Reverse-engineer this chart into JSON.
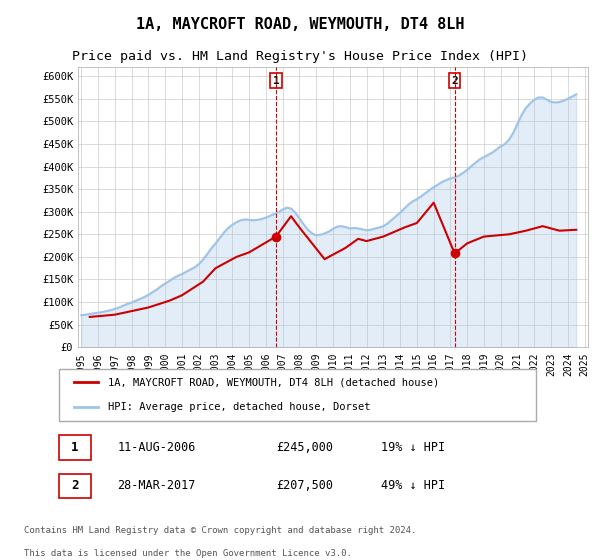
{
  "title": "1A, MAYCROFT ROAD, WEYMOUTH, DT4 8LH",
  "subtitle": "Price paid vs. HM Land Registry's House Price Index (HPI)",
  "title_fontsize": 11,
  "subtitle_fontsize": 9.5,
  "ylabel_ticks": [
    "£0",
    "£50K",
    "£100K",
    "£150K",
    "£200K",
    "£250K",
    "£300K",
    "£350K",
    "£400K",
    "£450K",
    "£500K",
    "£550K",
    "£600K"
  ],
  "ytick_values": [
    0,
    50000,
    100000,
    150000,
    200000,
    250000,
    300000,
    350000,
    400000,
    450000,
    500000,
    550000,
    600000
  ],
  "ylim": [
    0,
    620000
  ],
  "hpi_color": "#a0c4e8",
  "price_color": "#cc0000",
  "marker_color_1": "#cc0000",
  "marker_color_2": "#cc0000",
  "annotation_box_color": "#cc0000",
  "legend_label_price": "1A, MAYCROFT ROAD, WEYMOUTH, DT4 8LH (detached house)",
  "legend_label_hpi": "HPI: Average price, detached house, Dorset",
  "annotation_1_label": "1",
  "annotation_1_date": "11-AUG-2006",
  "annotation_1_price": "£245,000",
  "annotation_1_hpi": "19% ↓ HPI",
  "annotation_2_label": "2",
  "annotation_2_date": "28-MAR-2017",
  "annotation_2_price": "£207,500",
  "annotation_2_hpi": "49% ↓ HPI",
  "footer_line1": "Contains HM Land Registry data © Crown copyright and database right 2024.",
  "footer_line2": "This data is licensed under the Open Government Licence v3.0.",
  "background_color": "#ffffff",
  "plot_background": "#ffffff",
  "grid_color": "#cccccc",
  "hpi_x": [
    1995.0,
    1995.25,
    1995.5,
    1995.75,
    1996.0,
    1996.25,
    1996.5,
    1996.75,
    1997.0,
    1997.25,
    1997.5,
    1997.75,
    1998.0,
    1998.25,
    1998.5,
    1998.75,
    1999.0,
    1999.25,
    1999.5,
    1999.75,
    2000.0,
    2000.25,
    2000.5,
    2000.75,
    2001.0,
    2001.25,
    2001.5,
    2001.75,
    2002.0,
    2002.25,
    2002.5,
    2002.75,
    2003.0,
    2003.25,
    2003.5,
    2003.75,
    2004.0,
    2004.25,
    2004.5,
    2004.75,
    2005.0,
    2005.25,
    2005.5,
    2005.75,
    2006.0,
    2006.25,
    2006.5,
    2006.75,
    2007.0,
    2007.25,
    2007.5,
    2007.75,
    2008.0,
    2008.25,
    2008.5,
    2008.75,
    2009.0,
    2009.25,
    2009.5,
    2009.75,
    2010.0,
    2010.25,
    2010.5,
    2010.75,
    2011.0,
    2011.25,
    2011.5,
    2011.75,
    2012.0,
    2012.25,
    2012.5,
    2012.75,
    2013.0,
    2013.25,
    2013.5,
    2013.75,
    2014.0,
    2014.25,
    2014.5,
    2014.75,
    2015.0,
    2015.25,
    2015.5,
    2015.75,
    2016.0,
    2016.25,
    2016.5,
    2016.75,
    2017.0,
    2017.25,
    2017.5,
    2017.75,
    2018.0,
    2018.25,
    2018.5,
    2018.75,
    2019.0,
    2019.25,
    2019.5,
    2019.75,
    2020.0,
    2020.25,
    2020.5,
    2020.75,
    2021.0,
    2021.25,
    2021.5,
    2021.75,
    2022.0,
    2022.25,
    2022.5,
    2022.75,
    2023.0,
    2023.25,
    2023.5,
    2023.75,
    2024.0,
    2024.25,
    2024.5
  ],
  "hpi_y": [
    71000,
    72000,
    73500,
    75000,
    76500,
    78000,
    80000,
    82000,
    85000,
    88000,
    92000,
    96000,
    99000,
    103000,
    107000,
    111000,
    116000,
    122000,
    128000,
    135000,
    141000,
    147000,
    153000,
    158000,
    162000,
    167000,
    172000,
    177000,
    184000,
    194000,
    206000,
    219000,
    230000,
    242000,
    254000,
    264000,
    271000,
    277000,
    281000,
    283000,
    282000,
    281000,
    282000,
    284000,
    287000,
    291000,
    295000,
    299000,
    305000,
    309000,
    307000,
    298000,
    285000,
    272000,
    260000,
    252000,
    248000,
    249000,
    252000,
    256000,
    262000,
    267000,
    268000,
    266000,
    263000,
    264000,
    263000,
    261000,
    259000,
    260000,
    263000,
    265000,
    268000,
    274000,
    282000,
    290000,
    298000,
    307000,
    316000,
    323000,
    328000,
    334000,
    341000,
    348000,
    354000,
    360000,
    366000,
    370000,
    374000,
    376000,
    380000,
    386000,
    393000,
    401000,
    409000,
    416000,
    421000,
    426000,
    431000,
    438000,
    445000,
    450000,
    460000,
    475000,
    495000,
    515000,
    530000,
    540000,
    548000,
    553000,
    553000,
    548000,
    543000,
    542000,
    543000,
    546000,
    550000,
    555000,
    560000
  ],
  "price_x": [
    1995.5,
    1997.0,
    1999.0,
    2000.25,
    2001.0,
    2002.25,
    2003.0,
    2004.25,
    2005.0,
    2006.6,
    2007.5,
    2008.0,
    2009.5,
    2010.75,
    2011.5,
    2012.0,
    2013.0,
    2014.25,
    2015.0,
    2016.0,
    2017.25,
    2018.0,
    2019.0,
    2020.5,
    2021.5,
    2022.5,
    2023.5,
    2024.5
  ],
  "price_y": [
    67000,
    72000,
    88000,
    103000,
    115000,
    145000,
    175000,
    200000,
    210000,
    245000,
    290000,
    265000,
    195000,
    220000,
    240000,
    235000,
    245000,
    265000,
    275000,
    320000,
    207500,
    230000,
    245000,
    250000,
    258000,
    268000,
    258000,
    260000
  ],
  "marker1_x": 2006.6,
  "marker1_y": 245000,
  "marker2_x": 2017.25,
  "marker2_y": 207500,
  "vline1_x": 2006.6,
  "vline2_x": 2017.25,
  "xtick_years": [
    1995,
    1996,
    1997,
    1998,
    1999,
    2000,
    2001,
    2002,
    2003,
    2004,
    2005,
    2006,
    2007,
    2008,
    2009,
    2010,
    2011,
    2012,
    2013,
    2014,
    2015,
    2016,
    2017,
    2018,
    2019,
    2020,
    2021,
    2022,
    2023,
    2024,
    2025
  ]
}
